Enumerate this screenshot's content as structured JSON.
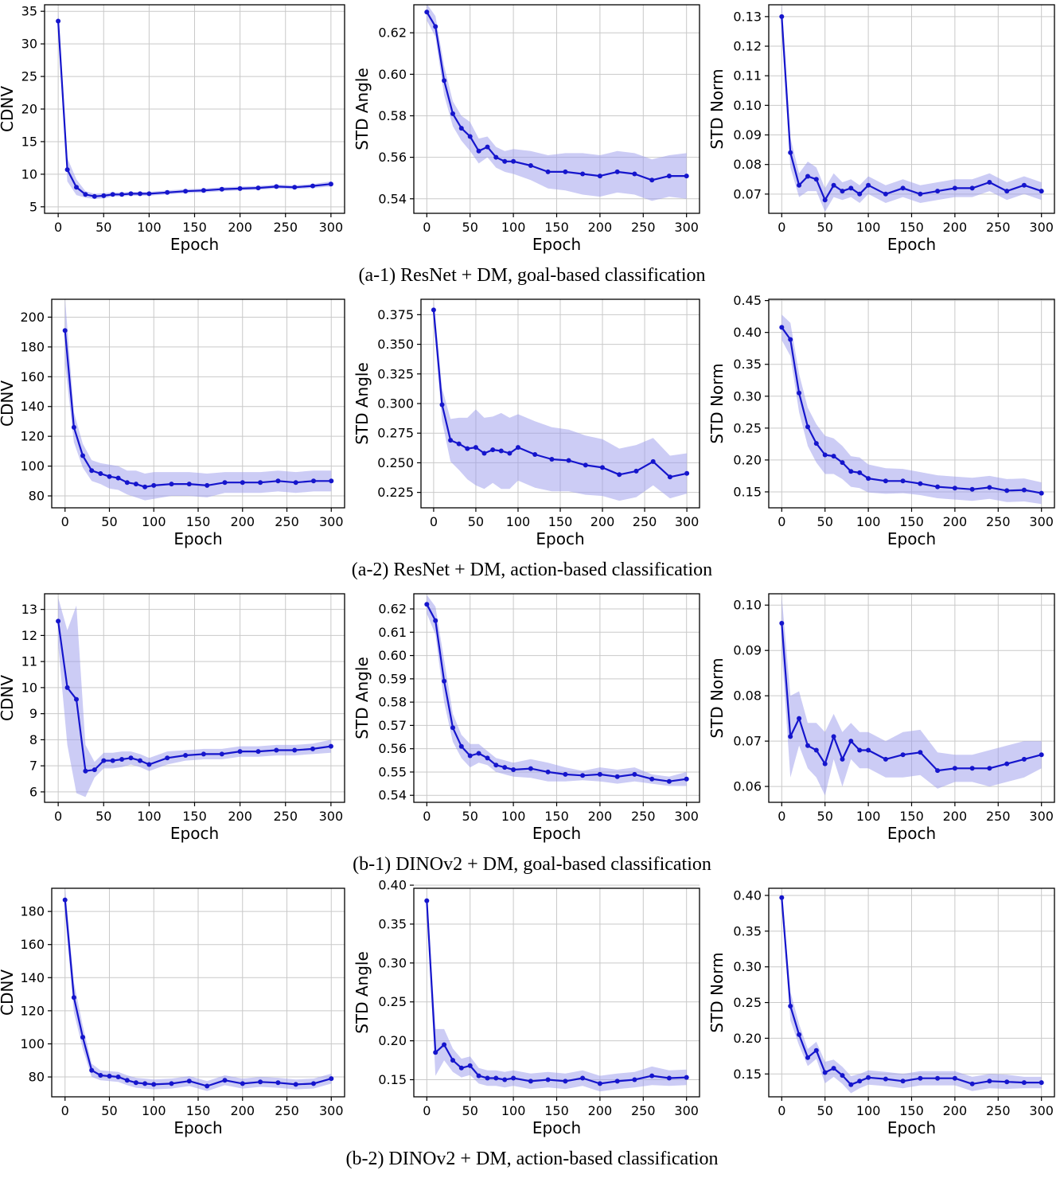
{
  "chart_data": {
    "type": "line",
    "xlabel": "Epoch",
    "x": [
      0,
      10,
      20,
      30,
      40,
      50,
      60,
      70,
      80,
      90,
      100,
      120,
      140,
      160,
      180,
      200,
      220,
      240,
      260,
      280,
      300
    ],
    "xticks": [
      "0",
      "50",
      "100",
      "150",
      "200",
      "250",
      "300"
    ],
    "xlim": [
      -15,
      315
    ],
    "style": {
      "line_color": "#1515cc",
      "band_color": "#9a9aec",
      "band_opacity": 0.5,
      "grid_color": "#c9c9c9",
      "frame_color": "#000000",
      "background": "#ffffff"
    },
    "rows": [
      {
        "caption": "(a-1) ResNet + DM, goal-based classification",
        "panels": [
          {
            "id": "a1-cdnv",
            "ylabel": "CDNV",
            "ylim": [
              4,
              36
            ],
            "yticks": [
              "5",
              "10",
              "15",
              "20",
              "25",
              "30",
              "35"
            ],
            "values": [
              33.5,
              10.7,
              8.0,
              6.9,
              6.6,
              6.7,
              6.9,
              6.9,
              7.0,
              7.0,
              7.0,
              7.2,
              7.4,
              7.5,
              7.7,
              7.8,
              7.9,
              8.1,
              8.0,
              8.2,
              8.5
            ],
            "band": [
              1.6,
              1.8,
              1.2,
              0.5,
              0.4,
              0.4,
              0.3,
              0.3,
              0.3,
              0.3,
              0.3,
              0.3,
              0.3,
              0.3,
              0.3,
              0.3,
              0.3,
              0.3,
              0.3,
              0.3,
              0.4
            ]
          },
          {
            "id": "a1-std-angle",
            "ylabel": "STD Angle",
            "ylim": [
              0.533,
              0.6335
            ],
            "yticks": [
              "0.54",
              "0.56",
              "0.58",
              "0.60",
              "0.62"
            ],
            "values": [
              0.63,
              0.623,
              0.597,
              0.581,
              0.574,
              0.57,
              0.563,
              0.565,
              0.56,
              0.558,
              0.558,
              0.556,
              0.553,
              0.553,
              0.552,
              0.551,
              0.553,
              0.552,
              0.549,
              0.551,
              0.551
            ],
            "band": [
              0.004,
              0.005,
              0.007,
              0.006,
              0.006,
              0.007,
              0.006,
              0.005,
              0.005,
              0.005,
              0.006,
              0.007,
              0.008,
              0.009,
              0.01,
              0.01,
              0.01,
              0.01,
              0.01,
              0.01,
              0.011
            ]
          },
          {
            "id": "a1-std-norm",
            "ylabel": "STD Norm",
            "ylim": [
              0.0635,
              0.134
            ],
            "yticks": [
              "0.07",
              "0.08",
              "0.09",
              "0.10",
              "0.11",
              "0.12",
              "0.13"
            ],
            "values": [
              0.13,
              0.084,
              0.073,
              0.076,
              0.075,
              0.068,
              0.073,
              0.071,
              0.072,
              0.07,
              0.073,
              0.07,
              0.072,
              0.07,
              0.071,
              0.072,
              0.072,
              0.074,
              0.071,
              0.073,
              0.071
            ],
            "band": [
              0.005,
              0.005,
              0.004,
              0.005,
              0.004,
              0.004,
              0.004,
              0.003,
              0.003,
              0.003,
              0.003,
              0.003,
              0.003,
              0.003,
              0.003,
              0.003,
              0.003,
              0.003,
              0.003,
              0.003,
              0.003
            ]
          }
        ]
      },
      {
        "caption": "(a-2) ResNet + DM, action-based classification",
        "panels": [
          {
            "id": "a2-cdnv",
            "ylabel": "CDNV",
            "ylim": [
              72,
              212
            ],
            "yticks": [
              "80",
              "100",
              "120",
              "140",
              "160",
              "180",
              "200"
            ],
            "values": [
              191,
              126,
              107,
              97,
              95,
              93,
              92,
              89,
              88,
              86,
              87,
              88,
              88,
              87,
              89,
              89,
              89,
              90,
              89,
              90,
              90
            ],
            "band": [
              22,
              10,
              8,
              7,
              7,
              8,
              8,
              8,
              9,
              9,
              9,
              8,
              8,
              8,
              7,
              7,
              7,
              7,
              7,
              7,
              7
            ]
          },
          {
            "id": "a2-std-angle",
            "ylabel": "STD Angle",
            "ylim": [
              0.212,
              0.388
            ],
            "yticks": [
              "0.225",
              "0.250",
              "0.275",
              "0.300",
              "0.325",
              "0.350",
              "0.375"
            ],
            "values": [
              0.379,
              0.299,
              0.269,
              0.266,
              0.262,
              0.263,
              0.258,
              0.261,
              0.26,
              0.258,
              0.263,
              0.257,
              0.253,
              0.252,
              0.248,
              0.246,
              0.24,
              0.243,
              0.251,
              0.238,
              0.241
            ],
            "band": [
              0.008,
              0.014,
              0.018,
              0.022,
              0.026,
              0.032,
              0.03,
              0.028,
              0.032,
              0.03,
              0.028,
              0.028,
              0.027,
              0.026,
              0.025,
              0.024,
              0.022,
              0.022,
              0.02,
              0.018,
              0.017
            ]
          },
          {
            "id": "a2-std-norm",
            "ylabel": "STD Norm",
            "ylim": [
              0.125,
              0.452
            ],
            "yticks": [
              "0.15",
              "0.20",
              "0.25",
              "0.30",
              "0.35",
              "0.40",
              "0.45"
            ],
            "values": [
              0.408,
              0.389,
              0.305,
              0.252,
              0.226,
              0.208,
              0.206,
              0.196,
              0.182,
              0.18,
              0.171,
              0.167,
              0.167,
              0.163,
              0.158,
              0.156,
              0.154,
              0.157,
              0.152,
              0.153,
              0.148
            ],
            "band": [
              0.02,
              0.026,
              0.03,
              0.03,
              0.03,
              0.03,
              0.028,
              0.026,
              0.024,
              0.024,
              0.022,
              0.02,
              0.019,
              0.018,
              0.018,
              0.018,
              0.018,
              0.018,
              0.018,
              0.018,
              0.017
            ]
          }
        ]
      },
      {
        "caption": "(b-1) DINOv2 + DM, goal-based classification",
        "panels": [
          {
            "id": "b1-cdnv",
            "ylabel": "CDNV",
            "ylim": [
              5.6,
              13.6
            ],
            "yticks": [
              "6",
              "7",
              "8",
              "9",
              "10",
              "11",
              "12",
              "13"
            ],
            "values": [
              12.55,
              10.0,
              9.55,
              6.8,
              6.85,
              7.2,
              7.2,
              7.25,
              7.3,
              7.2,
              7.05,
              7.3,
              7.4,
              7.45,
              7.45,
              7.55,
              7.55,
              7.6,
              7.6,
              7.65,
              7.75
            ],
            "band": [
              0.9,
              2.2,
              3.6,
              1.0,
              0.3,
              0.3,
              0.3,
              0.3,
              0.25,
              0.25,
              0.25,
              0.25,
              0.2,
              0.2,
              0.2,
              0.2,
              0.2,
              0.2,
              0.2,
              0.2,
              0.25
            ]
          },
          {
            "id": "b1-std-angle",
            "ylabel": "STD Angle",
            "ylim": [
              0.537,
              0.6265
            ],
            "yticks": [
              "0.54",
              "0.55",
              "0.56",
              "0.57",
              "0.58",
              "0.59",
              "0.60",
              "0.61",
              "0.62"
            ],
            "values": [
              0.622,
              0.615,
              0.589,
              0.569,
              0.561,
              0.557,
              0.558,
              0.556,
              0.553,
              0.552,
              0.551,
              0.5515,
              0.55,
              0.549,
              0.5485,
              0.549,
              0.548,
              0.549,
              0.547,
              0.546,
              0.547
            ],
            "band": [
              0.004,
              0.006,
              0.009,
              0.006,
              0.005,
              0.005,
              0.004,
              0.003,
              0.003,
              0.003,
              0.003,
              0.004,
              0.004,
              0.003,
              0.002,
              0.003,
              0.003,
              0.003,
              0.002,
              0.002,
              0.003
            ]
          },
          {
            "id": "b1-std-norm",
            "ylabel": "STD Norm",
            "ylim": [
              0.0565,
              0.1025
            ],
            "yticks": [
              "0.06",
              "0.07",
              "0.08",
              "0.09",
              "0.10"
            ],
            "values": [
              0.096,
              0.071,
              0.075,
              0.069,
              0.068,
              0.065,
              0.071,
              0.066,
              0.07,
              0.068,
              0.068,
              0.066,
              0.067,
              0.0675,
              0.0635,
              0.064,
              0.064,
              0.064,
              0.065,
              0.066,
              0.067
            ],
            "band": [
              0.006,
              0.009,
              0.006,
              0.005,
              0.006,
              0.007,
              0.005,
              0.006,
              0.004,
              0.004,
              0.004,
              0.004,
              0.005,
              0.005,
              0.004,
              0.003,
              0.003,
              0.004,
              0.004,
              0.004,
              0.003
            ]
          }
        ]
      },
      {
        "caption": "(b-2) DINOv2 + DM, action-based classification",
        "panels": [
          {
            "id": "b2-cdnv",
            "ylabel": "CDNV",
            "ylim": [
              68,
              194
            ],
            "yticks": [
              "80",
              "100",
              "120",
              "140",
              "160",
              "180"
            ],
            "values": [
              187,
              128,
              104,
              84,
              81,
              80.5,
              80,
              78,
              76.5,
              76,
              75.5,
              76,
              77.5,
              74.5,
              78,
              76,
              77,
              76.5,
              75.5,
              76,
              79
            ],
            "band": [
              8,
              9,
              7,
              4,
              3,
              3,
              3,
              3,
              3,
              3,
              3,
              3,
              3,
              3,
              3,
              3,
              3,
              3,
              3,
              3,
              3
            ]
          },
          {
            "id": "b2-std-angle",
            "ylabel": "STD Angle",
            "ylim": [
              0.128,
              0.396
            ],
            "yticks": [
              "0.15",
              "0.20",
              "0.25",
              "0.30",
              "0.35",
              "0.40"
            ],
            "values": [
              0.38,
              0.185,
              0.195,
              0.175,
              0.165,
              0.168,
              0.155,
              0.152,
              0.152,
              0.15,
              0.152,
              0.148,
              0.15,
              0.148,
              0.152,
              0.145,
              0.148,
              0.15,
              0.155,
              0.152,
              0.153
            ],
            "band": [
              0.008,
              0.03,
              0.02,
              0.015,
              0.012,
              0.012,
              0.01,
              0.01,
              0.01,
              0.01,
              0.01,
              0.01,
              0.01,
              0.01,
              0.01,
              0.01,
              0.01,
              0.01,
              0.012,
              0.01,
              0.01
            ]
          },
          {
            "id": "b2-std-norm",
            "ylabel": "STD Norm",
            "ylim": [
              0.118,
              0.41
            ],
            "yticks": [
              "0.15",
              "0.20",
              "0.25",
              "0.30",
              "0.35",
              "0.40"
            ],
            "values": [
              0.397,
              0.245,
              0.205,
              0.173,
              0.183,
              0.152,
              0.158,
              0.148,
              0.135,
              0.14,
              0.145,
              0.143,
              0.14,
              0.144,
              0.144,
              0.144,
              0.136,
              0.14,
              0.139,
              0.138,
              0.138
            ],
            "band": [
              0.01,
              0.02,
              0.015,
              0.012,
              0.012,
              0.015,
              0.012,
              0.012,
              0.012,
              0.01,
              0.01,
              0.01,
              0.01,
              0.01,
              0.01,
              0.01,
              0.01,
              0.01,
              0.01,
              0.008,
              0.008
            ]
          }
        ]
      }
    ]
  }
}
